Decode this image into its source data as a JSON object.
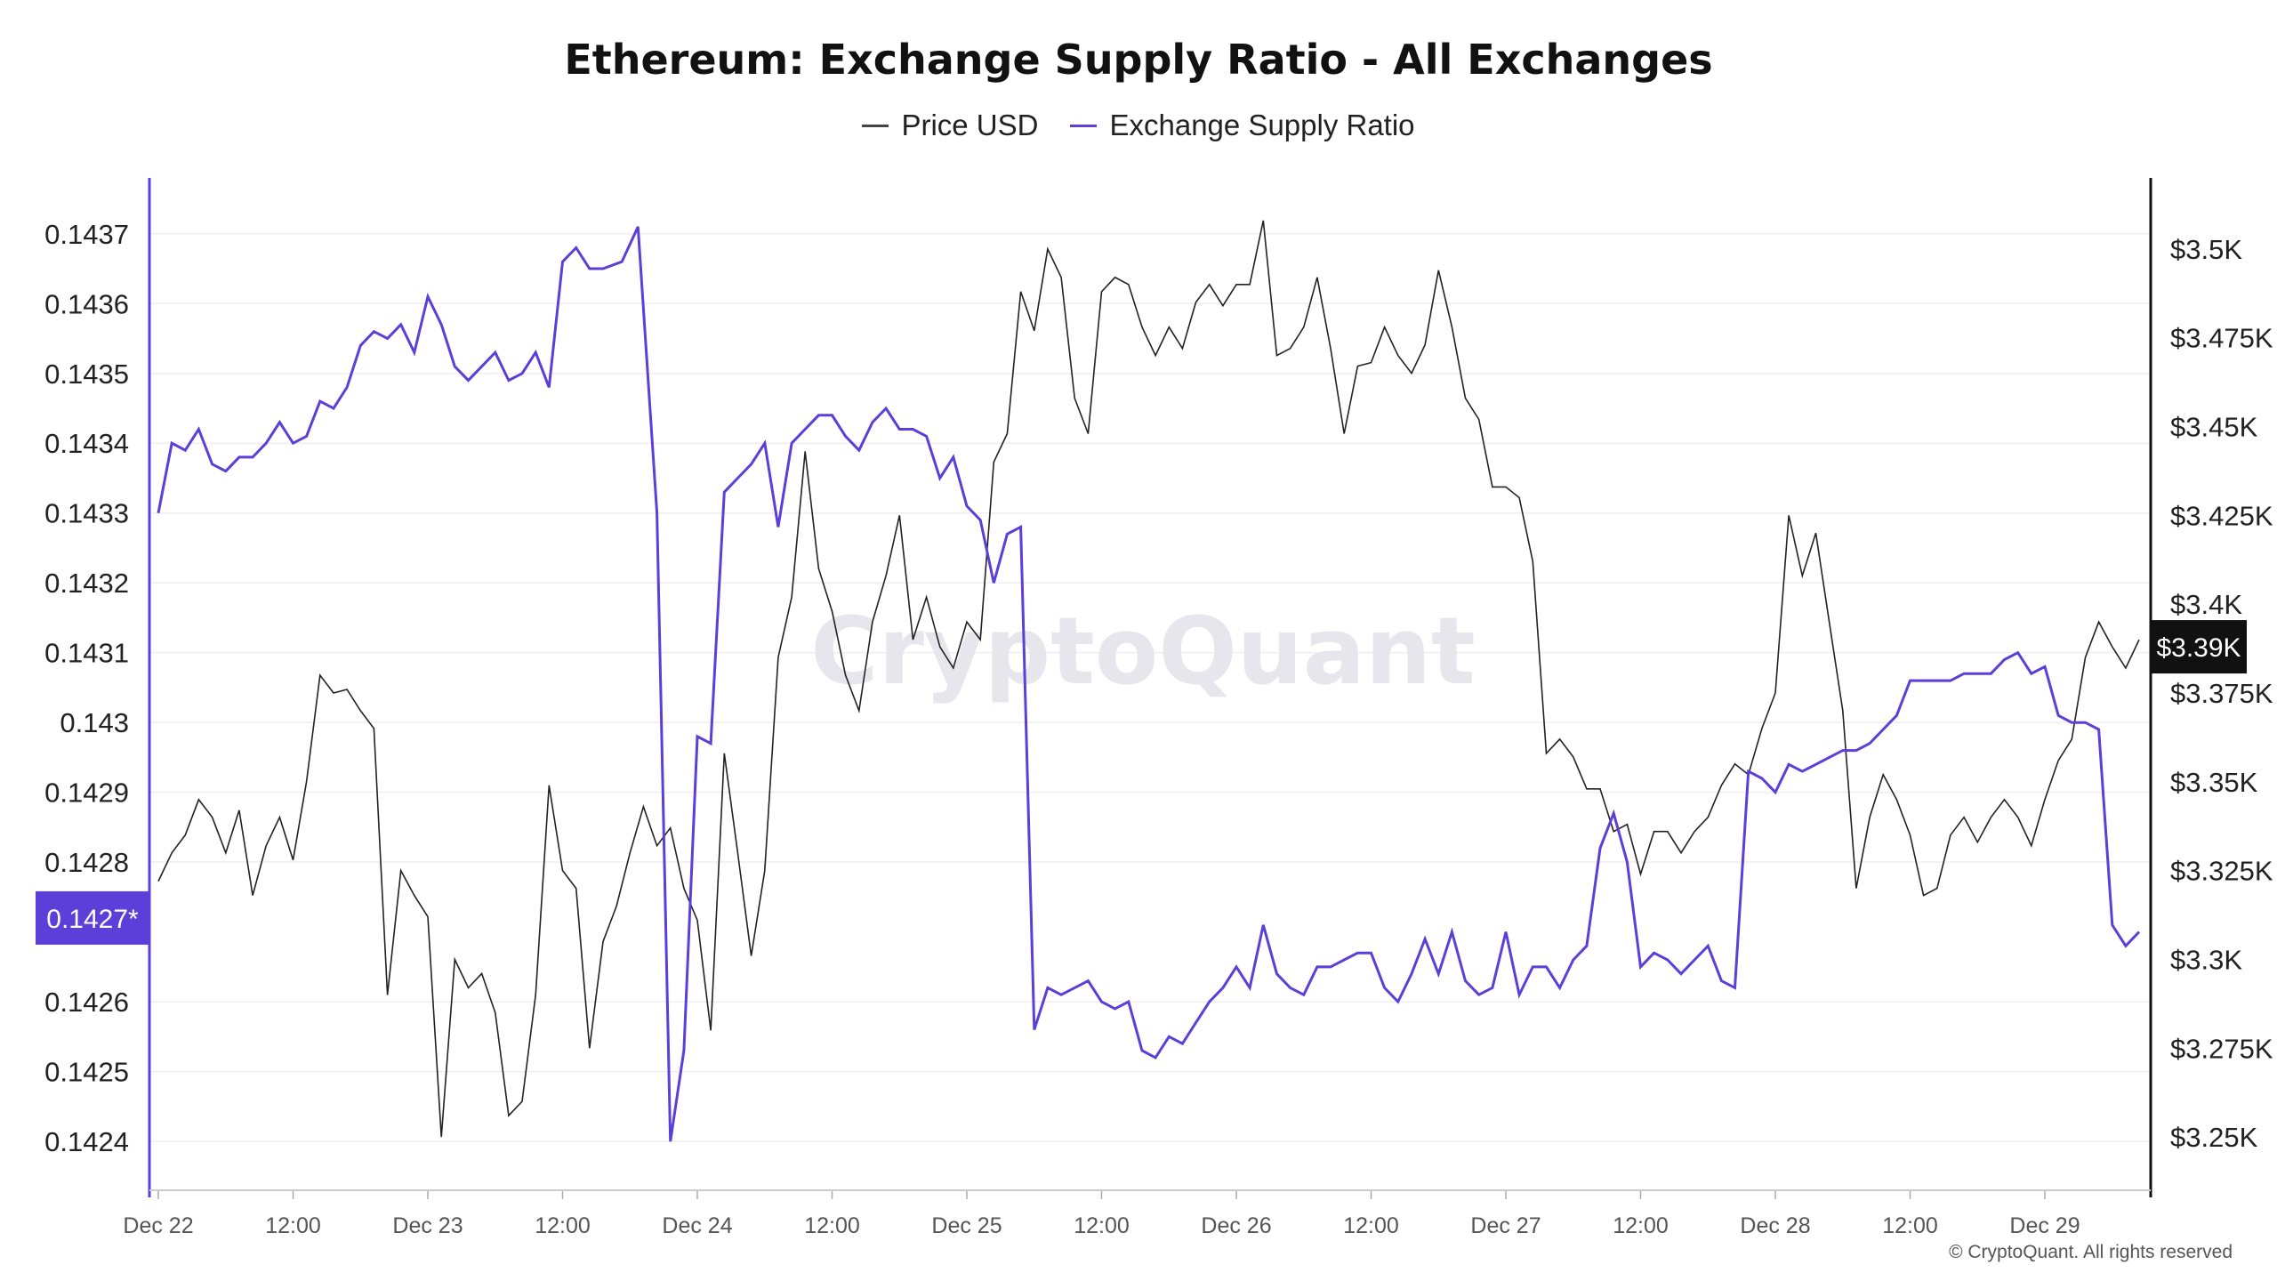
{
  "chart_data": {
    "type": "line",
    "title": "Ethereum: Exchange Supply Ratio - All Exchanges",
    "legend": [
      "Price USD",
      "Exchange Supply Ratio"
    ],
    "colors": {
      "price": "#222222",
      "ratio": "#5b3fd8",
      "badge_ratio": "#5b3fd8",
      "badge_price": "#111111"
    },
    "x_ticks": [
      "Dec 22",
      "12:00",
      "Dec 23",
      "12:00",
      "Dec 24",
      "12:00",
      "Dec 25",
      "12:00",
      "Dec 26",
      "12:00",
      "Dec 27",
      "12:00",
      "Dec 28",
      "12:00",
      "Dec 29"
    ],
    "x_range_days": [
      0,
      7.4
    ],
    "y_left": {
      "ticks": [
        "0.1437",
        "0.1436",
        "0.1435",
        "0.1434",
        "0.1433",
        "0.1432",
        "0.1431",
        "0.143",
        "0.1429",
        "0.1428",
        "0.1426",
        "0.1425",
        "0.1424"
      ],
      "ylim": [
        0.14233,
        0.14378
      ]
    },
    "y_right": {
      "ticks": [
        "$3.5K",
        "$3.475K",
        "$3.45K",
        "$3.425K",
        "$3.4K",
        "$3.375K",
        "$3.35K",
        "$3.325K",
        "$3.3K",
        "$3.275K",
        "$3.25K"
      ],
      "ylim": [
        3235,
        3520
      ]
    },
    "badge_left": "0.1427*",
    "badge_right": "$3.39K",
    "badge_left_value": 0.14272,
    "badge_right_value": 3388,
    "series": [
      {
        "name": "Exchange Supply Ratio",
        "axis": "left",
        "points": [
          [
            0.0,
            0.1433
          ],
          [
            0.05,
            0.1434
          ],
          [
            0.1,
            0.14339
          ],
          [
            0.15,
            0.14342
          ],
          [
            0.2,
            0.14337
          ],
          [
            0.25,
            0.14336
          ],
          [
            0.3,
            0.14338
          ],
          [
            0.35,
            0.14338
          ],
          [
            0.4,
            0.1434
          ],
          [
            0.45,
            0.14343
          ],
          [
            0.5,
            0.1434
          ],
          [
            0.55,
            0.14341
          ],
          [
            0.6,
            0.14346
          ],
          [
            0.65,
            0.14345
          ],
          [
            0.7,
            0.14348
          ],
          [
            0.75,
            0.14354
          ],
          [
            0.8,
            0.14356
          ],
          [
            0.85,
            0.14355
          ],
          [
            0.9,
            0.14357
          ],
          [
            0.95,
            0.14353
          ],
          [
            1.0,
            0.14361
          ],
          [
            1.05,
            0.14357
          ],
          [
            1.1,
            0.14351
          ],
          [
            1.15,
            0.14349
          ],
          [
            1.2,
            0.14351
          ],
          [
            1.25,
            0.14353
          ],
          [
            1.3,
            0.14349
          ],
          [
            1.35,
            0.1435
          ],
          [
            1.4,
            0.14353
          ],
          [
            1.45,
            0.14348
          ],
          [
            1.5,
            0.14366
          ],
          [
            1.55,
            0.14368
          ],
          [
            1.6,
            0.14365
          ],
          [
            1.65,
            0.14365
          ],
          [
            1.72,
            0.14366
          ],
          [
            1.78,
            0.14371
          ],
          [
            1.85,
            0.1433
          ],
          [
            1.9,
            0.1424
          ],
          [
            1.95,
            0.14253
          ],
          [
            2.0,
            0.14298
          ],
          [
            2.05,
            0.14297
          ],
          [
            2.1,
            0.14333
          ],
          [
            2.15,
            0.14335
          ],
          [
            2.2,
            0.14337
          ],
          [
            2.25,
            0.1434
          ],
          [
            2.3,
            0.14328
          ],
          [
            2.35,
            0.1434
          ],
          [
            2.4,
            0.14342
          ],
          [
            2.45,
            0.14344
          ],
          [
            2.5,
            0.14344
          ],
          [
            2.55,
            0.14341
          ],
          [
            2.6,
            0.14339
          ],
          [
            2.65,
            0.14343
          ],
          [
            2.7,
            0.14345
          ],
          [
            2.75,
            0.14342
          ],
          [
            2.8,
            0.14342
          ],
          [
            2.85,
            0.14341
          ],
          [
            2.9,
            0.14335
          ],
          [
            2.95,
            0.14338
          ],
          [
            3.0,
            0.14331
          ],
          [
            3.05,
            0.14329
          ],
          [
            3.1,
            0.1432
          ],
          [
            3.15,
            0.14327
          ],
          [
            3.2,
            0.14328
          ],
          [
            3.25,
            0.14256
          ],
          [
            3.3,
            0.14262
          ],
          [
            3.35,
            0.14261
          ],
          [
            3.4,
            0.14262
          ],
          [
            3.45,
            0.14263
          ],
          [
            3.5,
            0.1426
          ],
          [
            3.55,
            0.14259
          ],
          [
            3.6,
            0.1426
          ],
          [
            3.65,
            0.14253
          ],
          [
            3.7,
            0.14252
          ],
          [
            3.75,
            0.14255
          ],
          [
            3.8,
            0.14254
          ],
          [
            3.85,
            0.14257
          ],
          [
            3.9,
            0.1426
          ],
          [
            3.95,
            0.14262
          ],
          [
            4.0,
            0.14265
          ],
          [
            4.05,
            0.14262
          ],
          [
            4.1,
            0.14271
          ],
          [
            4.15,
            0.14264
          ],
          [
            4.2,
            0.14262
          ],
          [
            4.25,
            0.14261
          ],
          [
            4.3,
            0.14265
          ],
          [
            4.35,
            0.14265
          ],
          [
            4.4,
            0.14266
          ],
          [
            4.45,
            0.14267
          ],
          [
            4.5,
            0.14267
          ],
          [
            4.55,
            0.14262
          ],
          [
            4.6,
            0.1426
          ],
          [
            4.65,
            0.14264
          ],
          [
            4.7,
            0.14269
          ],
          [
            4.75,
            0.14264
          ],
          [
            4.8,
            0.1427
          ],
          [
            4.85,
            0.14263
          ],
          [
            4.9,
            0.14261
          ],
          [
            4.95,
            0.14262
          ],
          [
            5.0,
            0.1427
          ],
          [
            5.05,
            0.14261
          ],
          [
            5.1,
            0.14265
          ],
          [
            5.15,
            0.14265
          ],
          [
            5.2,
            0.14262
          ],
          [
            5.25,
            0.14266
          ],
          [
            5.3,
            0.14268
          ],
          [
            5.35,
            0.14282
          ],
          [
            5.4,
            0.14287
          ],
          [
            5.45,
            0.1428
          ],
          [
            5.5,
            0.14265
          ],
          [
            5.55,
            0.14267
          ],
          [
            5.6,
            0.14266
          ],
          [
            5.65,
            0.14264
          ],
          [
            5.7,
            0.14266
          ],
          [
            5.75,
            0.14268
          ],
          [
            5.8,
            0.14263
          ],
          [
            5.85,
            0.14262
          ],
          [
            5.9,
            0.14293
          ],
          [
            5.95,
            0.14292
          ],
          [
            6.0,
            0.1429
          ],
          [
            6.05,
            0.14294
          ],
          [
            6.1,
            0.14293
          ],
          [
            6.15,
            0.14294
          ],
          [
            6.2,
            0.14295
          ],
          [
            6.25,
            0.14296
          ],
          [
            6.3,
            0.14296
          ],
          [
            6.35,
            0.14297
          ],
          [
            6.4,
            0.14299
          ],
          [
            6.45,
            0.14301
          ],
          [
            6.5,
            0.14306
          ],
          [
            6.55,
            0.14306
          ],
          [
            6.6,
            0.14306
          ],
          [
            6.65,
            0.14306
          ],
          [
            6.7,
            0.14307
          ],
          [
            6.75,
            0.14307
          ],
          [
            6.8,
            0.14307
          ],
          [
            6.85,
            0.14309
          ],
          [
            6.9,
            0.1431
          ],
          [
            6.95,
            0.14307
          ],
          [
            7.0,
            0.14308
          ],
          [
            7.05,
            0.14301
          ],
          [
            7.1,
            0.143
          ],
          [
            7.15,
            0.143
          ],
          [
            7.2,
            0.14299
          ],
          [
            7.25,
            0.14271
          ],
          [
            7.3,
            0.14268
          ],
          [
            7.35,
            0.1427
          ]
        ]
      },
      {
        "name": "Price USD",
        "axis": "right",
        "points": [
          [
            0.0,
            3322
          ],
          [
            0.05,
            3330
          ],
          [
            0.1,
            3335
          ],
          [
            0.15,
            3345
          ],
          [
            0.2,
            3340
          ],
          [
            0.25,
            3330
          ],
          [
            0.3,
            3342
          ],
          [
            0.35,
            3318
          ],
          [
            0.4,
            3332
          ],
          [
            0.45,
            3340
          ],
          [
            0.5,
            3328
          ],
          [
            0.55,
            3350
          ],
          [
            0.6,
            3380
          ],
          [
            0.65,
            3375
          ],
          [
            0.7,
            3376
          ],
          [
            0.75,
            3370
          ],
          [
            0.8,
            3365
          ],
          [
            0.85,
            3290
          ],
          [
            0.9,
            3325
          ],
          [
            0.95,
            3318
          ],
          [
            1.0,
            3312
          ],
          [
            1.05,
            3250
          ],
          [
            1.1,
            3300
          ],
          [
            1.15,
            3292
          ],
          [
            1.2,
            3296
          ],
          [
            1.25,
            3285
          ],
          [
            1.3,
            3256
          ],
          [
            1.35,
            3260
          ],
          [
            1.4,
            3290
          ],
          [
            1.45,
            3349
          ],
          [
            1.5,
            3325
          ],
          [
            1.55,
            3320
          ],
          [
            1.6,
            3275
          ],
          [
            1.65,
            3305
          ],
          [
            1.7,
            3315
          ],
          [
            1.75,
            3330
          ],
          [
            1.8,
            3343
          ],
          [
            1.85,
            3332
          ],
          [
            1.9,
            3337
          ],
          [
            1.95,
            3320
          ],
          [
            2.0,
            3311
          ],
          [
            2.05,
            3280
          ],
          [
            2.1,
            3358
          ],
          [
            2.15,
            3330
          ],
          [
            2.2,
            3301
          ],
          [
            2.25,
            3325
          ],
          [
            2.3,
            3385
          ],
          [
            2.35,
            3402
          ],
          [
            2.4,
            3443
          ],
          [
            2.45,
            3410
          ],
          [
            2.5,
            3398
          ],
          [
            2.55,
            3380
          ],
          [
            2.6,
            3370
          ],
          [
            2.65,
            3395
          ],
          [
            2.7,
            3408
          ],
          [
            2.75,
            3425
          ],
          [
            2.8,
            3390
          ],
          [
            2.85,
            3402
          ],
          [
            2.9,
            3388
          ],
          [
            2.95,
            3382
          ],
          [
            3.0,
            3395
          ],
          [
            3.05,
            3390
          ],
          [
            3.1,
            3440
          ],
          [
            3.15,
            3448
          ],
          [
            3.2,
            3488
          ],
          [
            3.25,
            3477
          ],
          [
            3.3,
            3500
          ],
          [
            3.35,
            3492
          ],
          [
            3.4,
            3458
          ],
          [
            3.45,
            3448
          ],
          [
            3.5,
            3488
          ],
          [
            3.55,
            3492
          ],
          [
            3.6,
            3490
          ],
          [
            3.65,
            3478
          ],
          [
            3.7,
            3470
          ],
          [
            3.75,
            3478
          ],
          [
            3.8,
            3472
          ],
          [
            3.85,
            3485
          ],
          [
            3.9,
            3490
          ],
          [
            3.95,
            3484
          ],
          [
            4.0,
            3490
          ],
          [
            4.05,
            3490
          ],
          [
            4.1,
            3508
          ],
          [
            4.15,
            3470
          ],
          [
            4.2,
            3472
          ],
          [
            4.25,
            3478
          ],
          [
            4.3,
            3492
          ],
          [
            4.35,
            3472
          ],
          [
            4.4,
            3448
          ],
          [
            4.45,
            3467
          ],
          [
            4.5,
            3468
          ],
          [
            4.55,
            3478
          ],
          [
            4.6,
            3470
          ],
          [
            4.65,
            3465
          ],
          [
            4.7,
            3473
          ],
          [
            4.75,
            3494
          ],
          [
            4.8,
            3478
          ],
          [
            4.85,
            3458
          ],
          [
            4.9,
            3452
          ],
          [
            4.95,
            3433
          ],
          [
            5.0,
            3433
          ],
          [
            5.05,
            3430
          ],
          [
            5.1,
            3412
          ],
          [
            5.15,
            3358
          ],
          [
            5.2,
            3362
          ],
          [
            5.25,
            3357
          ],
          [
            5.3,
            3348
          ],
          [
            5.35,
            3348
          ],
          [
            5.4,
            3336
          ],
          [
            5.45,
            3338
          ],
          [
            5.5,
            3324
          ],
          [
            5.55,
            3336
          ],
          [
            5.6,
            3336
          ],
          [
            5.65,
            3330
          ],
          [
            5.7,
            3336
          ],
          [
            5.75,
            3340
          ],
          [
            5.8,
            3349
          ],
          [
            5.85,
            3355
          ],
          [
            5.9,
            3352
          ],
          [
            5.95,
            3365
          ],
          [
            6.0,
            3375
          ],
          [
            6.05,
            3425
          ],
          [
            6.1,
            3408
          ],
          [
            6.15,
            3420
          ],
          [
            6.2,
            3395
          ],
          [
            6.25,
            3370
          ],
          [
            6.3,
            3320
          ],
          [
            6.35,
            3340
          ],
          [
            6.4,
            3352
          ],
          [
            6.45,
            3345
          ],
          [
            6.5,
            3335
          ],
          [
            6.55,
            3318
          ],
          [
            6.6,
            3320
          ],
          [
            6.65,
            3335
          ],
          [
            6.7,
            3340
          ],
          [
            6.75,
            3333
          ],
          [
            6.8,
            3340
          ],
          [
            6.85,
            3345
          ],
          [
            6.9,
            3340
          ],
          [
            6.95,
            3332
          ],
          [
            7.0,
            3345
          ],
          [
            7.05,
            3356
          ],
          [
            7.1,
            3362
          ],
          [
            7.15,
            3385
          ],
          [
            7.2,
            3395
          ],
          [
            7.25,
            3388
          ],
          [
            7.3,
            3382
          ],
          [
            7.35,
            3390
          ]
        ]
      }
    ],
    "watermark": "CryptoQuant",
    "copyright": "© CryptoQuant. All rights reserved"
  }
}
